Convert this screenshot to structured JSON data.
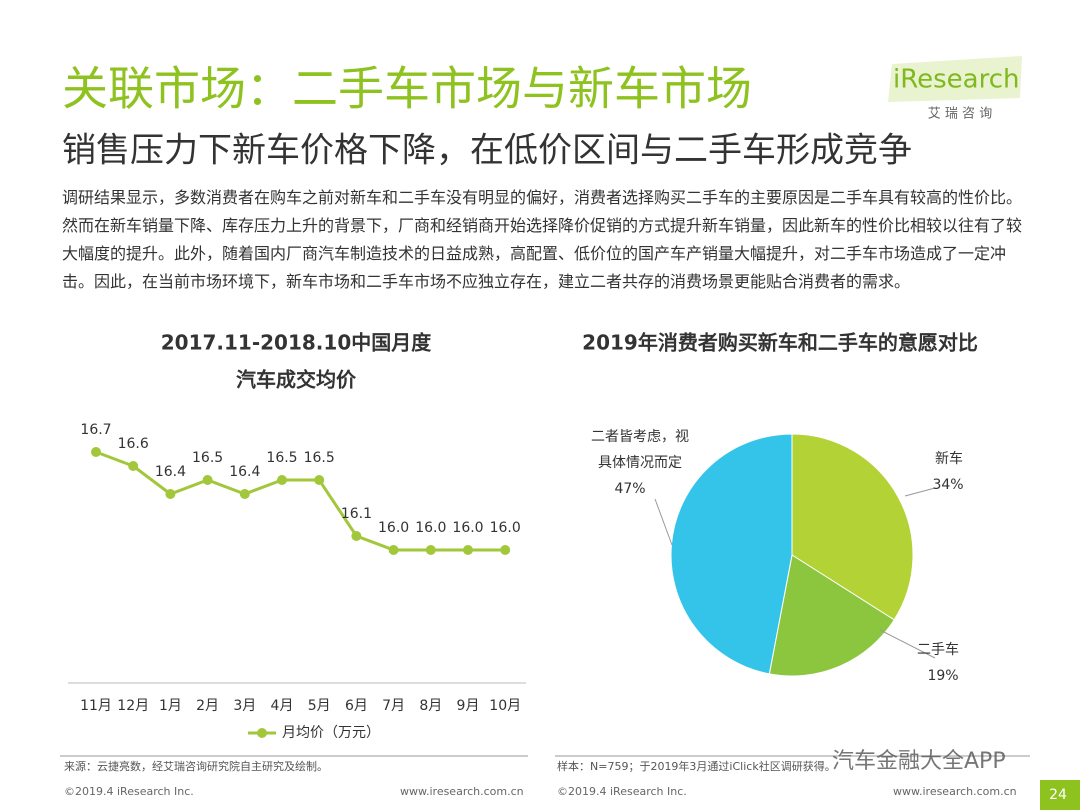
{
  "header": {
    "title": "关联市场：二手车市场与新车市场",
    "subtitle": "销售压力下新车价格下降，在低价区间与二手车形成竞争",
    "logo": "iResearch",
    "logo_cn": "艾 瑞 咨 询"
  },
  "body": "调研结果显示，多数消费者在购车之前对新车和二手车没有明显的偏好，消费者选择购买二手车的主要原因是二手车具有较高的性价比。然而在新车销量下降、库存压力上升的背景下，厂商和经销商开始选择降价促销的方式提升新车销量，因此新车的性价比相较以往有了较大幅度的提升。此外，随着国内厂商汽车制造技术的日益成熟，高配置、低价位的国产车产销量大幅提升，对二手车市场造成了一定冲击。因此，在当前市场环境下，新车市场和二手车市场不应独立存在，建立二者共存的消费场景更能贴合消费者的需求。",
  "chart_data": [
    {
      "type": "line",
      "title": [
        "2017.11-2018.10中国月度",
        "汽车成交均价"
      ],
      "categories": [
        "11月",
        "12月",
        "1月",
        "2月",
        "3月",
        "4月",
        "5月",
        "6月",
        "7月",
        "8月",
        "9月",
        "10月"
      ],
      "series": [
        {
          "name": "月均价（万元）",
          "color": "#a2c73b",
          "values": [
            16.7,
            16.6,
            16.4,
            16.5,
            16.4,
            16.5,
            16.5,
            16.1,
            16.0,
            16.0,
            16.0,
            16.0
          ],
          "value_labels": [
            "16.7",
            "16.6",
            "16.4",
            "16.5",
            "16.4",
            "16.5",
            "16.5",
            "16.1",
            "16.0",
            "16.0",
            "16.0",
            "16.0"
          ]
        }
      ],
      "legend": "bottom"
    },
    {
      "type": "pie",
      "title": "2019年消费者购买新车和二手车的意愿对比",
      "categories": [
        "新车",
        "二手车",
        "二者皆考虑，视具体情况而定"
      ],
      "values": [
        34,
        19,
        47
      ],
      "value_labels": [
        "34%",
        "19%",
        "47%"
      ],
      "colors": [
        "#b3d236",
        "#8cc63f",
        "#34c4ea"
      ]
    }
  ],
  "footer": {
    "source": "来源：云捷亮数，经艾瑞咨询研究院自主研究及绘制。",
    "sample": "样本：N=759；于2019年3月通过iClick社区调研获得。",
    "copyright": "©2019.4 iResearch Inc.",
    "website": "www.iresearch.com.cn",
    "watermark": "汽车金融大全APP",
    "page": "24"
  }
}
